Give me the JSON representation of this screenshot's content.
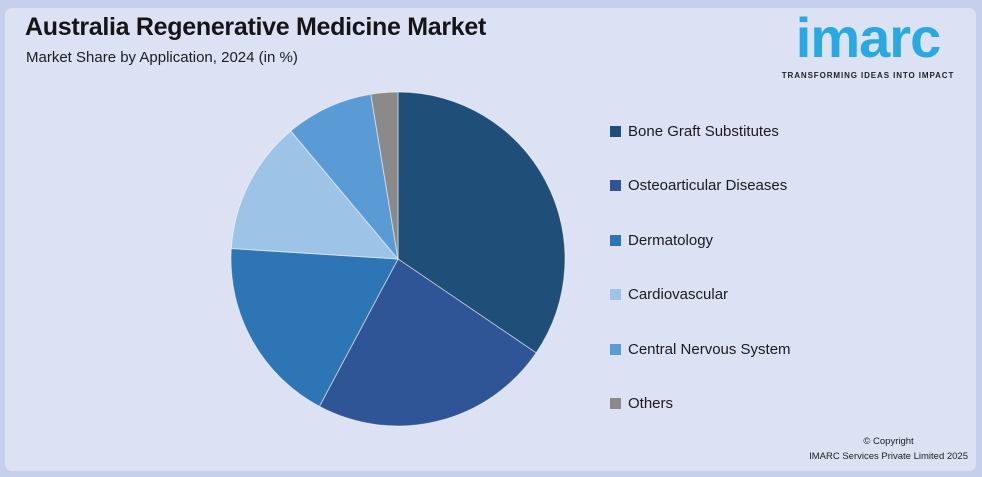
{
  "header": {
    "title": "Australia Regenerative Medicine Market",
    "subtitle": "Market Share by Application, 2024 (in %)"
  },
  "logo": {
    "wordmark": "imarc",
    "tagline": "TRANSFORMING IDEAS INTO IMPACT",
    "wordmark_color": "#29A9E1"
  },
  "footer": {
    "copyright_line1": "© Copyright",
    "copyright_line2": "IMARC Services Private Limited 2025"
  },
  "theme": {
    "page_background": "#c6cfeb",
    "card_background": "#dce2f3",
    "text_color": "#14141b"
  },
  "chart_data": {
    "type": "pie",
    "title": "Australia Regenerative Medicine Market",
    "subtitle": "Market Share by Application, 2024 (in %)",
    "unit": "%",
    "labels": [
      "Bone Graft Substitutes",
      "Osteoarticular Diseases",
      "Dermatology",
      "Cardiovascular",
      "Central Nervous System",
      "Others"
    ],
    "values": [
      34.5,
      23.3,
      18.2,
      12.9,
      8.5,
      2.6
    ],
    "colors": [
      "#1F4E79",
      "#2F5597",
      "#2E75B6",
      "#9DC3E6",
      "#5B9BD5",
      "#8A8A8A"
    ],
    "start_angle_deg": 0,
    "direction": "clockwise",
    "legend_position": "right",
    "data_labels_shown": false
  }
}
